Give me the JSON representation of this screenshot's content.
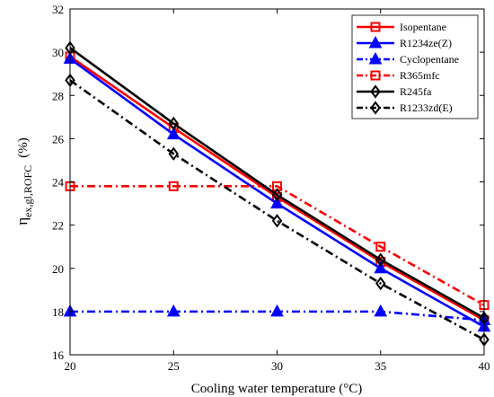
{
  "chart_data": {
    "type": "line",
    "xlabel": "Cooling water temperature (°C)",
    "ylabel": {
      "main": "η",
      "sub": "ex,gl,ROFC",
      "unit": "(%)"
    },
    "x": [
      20,
      25,
      30,
      35,
      40
    ],
    "xlim": [
      20,
      40
    ],
    "ylim": [
      16,
      32
    ],
    "xticks": [
      "20",
      "25",
      "30",
      "35",
      "40"
    ],
    "yticks": [
      "16",
      "18",
      "20",
      "22",
      "24",
      "26",
      "28",
      "30",
      "32"
    ],
    "grid": false,
    "legend_position": "top-right",
    "series": [
      {
        "name": "Isopentane",
        "color": "#ff0000",
        "line": "solid",
        "marker": "square",
        "values": [
          29.8,
          26.5,
          23.3,
          20.3,
          17.6
        ]
      },
      {
        "name": "R1234ze(Z)",
        "color": "#0000ff",
        "line": "solid",
        "marker": "triangle",
        "values": [
          29.7,
          26.2,
          23.0,
          20.0,
          17.3
        ]
      },
      {
        "name": "Cyclopentane",
        "color": "#0000ff",
        "line": "dashdot",
        "marker": "triangle",
        "values": [
          18.0,
          18.0,
          18.0,
          18.0,
          17.6
        ]
      },
      {
        "name": "R365mfc",
        "color": "#ff0000",
        "line": "dashdot",
        "marker": "square",
        "values": [
          23.8,
          23.8,
          23.8,
          21.0,
          18.3
        ]
      },
      {
        "name": "R245fa",
        "color": "#000000",
        "line": "solid",
        "marker": "diamond",
        "values": [
          30.2,
          26.7,
          23.4,
          20.4,
          17.7
        ]
      },
      {
        "name": "R1233zd(E)",
        "color": "#000000",
        "line": "dashdot",
        "marker": "diamond",
        "values": [
          28.7,
          25.3,
          22.2,
          19.3,
          16.7
        ]
      }
    ]
  }
}
